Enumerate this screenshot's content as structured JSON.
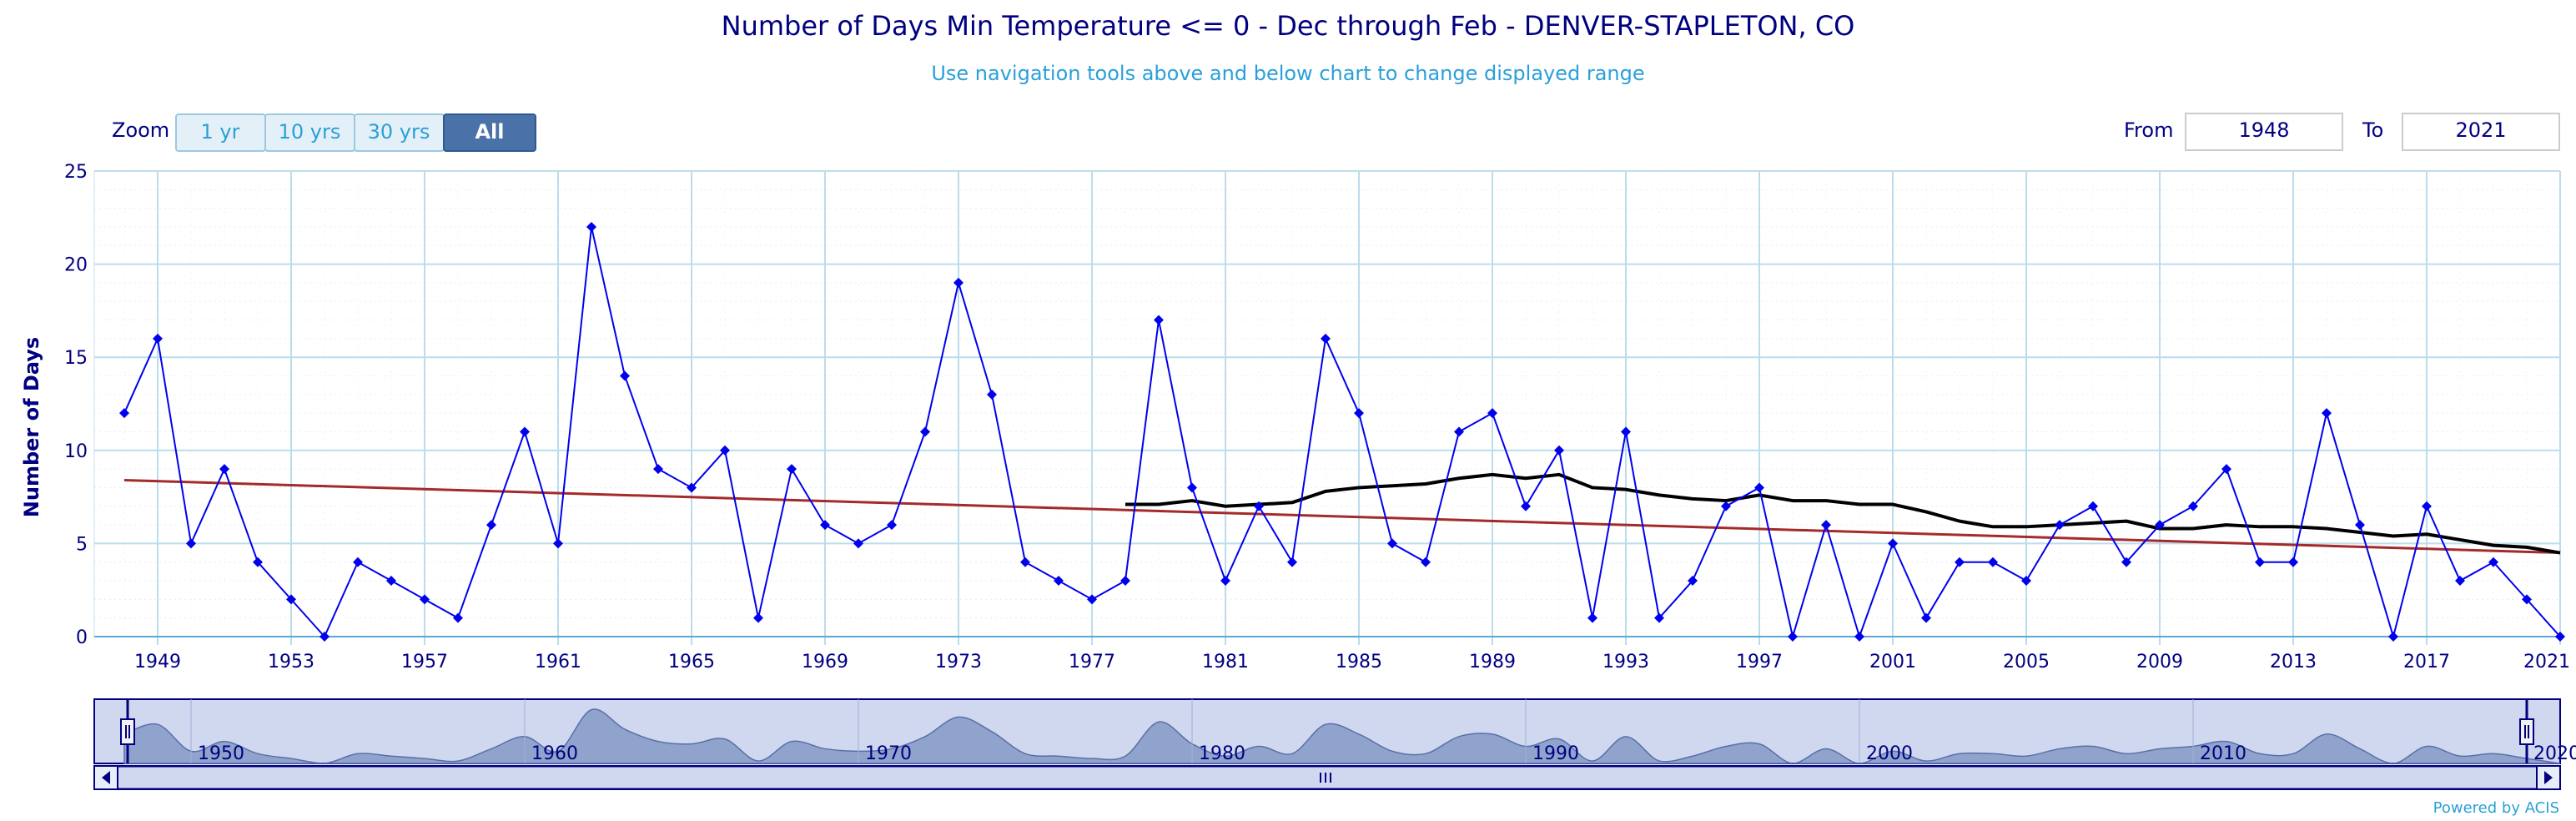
{
  "title": "Number of Days Min Temperature <= 0 - Dec through Feb - DENVER-STAPLETON, CO",
  "subtitle": "Use navigation tools above and below chart to change displayed range",
  "zoom": {
    "label": "Zoom",
    "buttons": [
      "1 yr",
      "10 yrs",
      "30 yrs",
      "All"
    ],
    "active": "All"
  },
  "range": {
    "from_label": "From",
    "from_value": "1948",
    "to_label": "To",
    "to_value": "2021"
  },
  "credit": "Powered by ACIS",
  "colors": {
    "series": "#0000ee",
    "trend": "#a52a2a",
    "mean": "#000000",
    "title": "#000080",
    "subtitle": "#2aa0d8",
    "grid": "#bcdcec",
    "navigator_fill": "#cfd8ee",
    "navigator_area": "#8fa3cc",
    "zoom_active": "#4a72a8",
    "zoom_inactive": "#e4f0f8"
  },
  "chart_data": {
    "type": "line",
    "xlabel": "",
    "ylabel": "Number of Days",
    "ylim": [
      0,
      25
    ],
    "xlim": [
      1947.1,
      2021
    ],
    "y_ticks": [
      0,
      5,
      10,
      15,
      20,
      25
    ],
    "x_ticks": [
      "1949",
      "1953",
      "1957",
      "1961",
      "1965",
      "1969",
      "1973",
      "1977",
      "1981",
      "1985",
      "1989",
      "1993",
      "1997",
      "2001",
      "2005",
      "2009",
      "2013",
      "2017",
      "2021"
    ],
    "grid": true,
    "series": [
      {
        "x": [
          1948,
          1949,
          1950,
          1951,
          1952,
          1953,
          1954,
          1955,
          1956,
          1957,
          1958,
          1959,
          1960,
          1961,
          1962,
          1963,
          1964,
          1965,
          1966,
          1967,
          1968,
          1969,
          1970,
          1971,
          1972,
          1973,
          1974,
          1975,
          1976,
          1977,
          1978,
          1979,
          1980,
          1981,
          1982,
          1983,
          1984,
          1985,
          1986,
          1987,
          1988,
          1989,
          1990,
          1991,
          1992,
          1993,
          1994,
          1995,
          1996,
          1997,
          1998,
          1999,
          2000,
          2001,
          2002,
          2003,
          2004,
          2005,
          2006,
          2007,
          2008,
          2009,
          2010,
          2011,
          2012,
          2013,
          2014,
          2015,
          2016,
          2017,
          2018,
          2019,
          2020,
          2021
        ],
        "values": [
          12,
          16,
          5,
          9,
          4,
          2,
          0,
          4,
          3,
          2,
          1,
          6,
          11,
          5,
          22,
          14,
          9,
          8,
          10,
          1,
          9,
          6,
          5,
          6,
          11,
          19,
          13,
          4,
          3,
          2,
          3,
          17,
          8,
          3,
          7,
          4,
          16,
          12,
          5,
          4,
          11,
          12,
          7,
          10,
          1,
          11,
          1,
          3,
          7,
          8,
          0,
          6,
          0,
          5,
          1,
          4,
          4,
          3,
          6,
          7,
          4,
          6,
          7,
          9,
          4,
          4,
          12,
          6,
          0,
          7,
          3,
          4,
          2,
          0
        ]
      },
      {
        "x": [
          1948,
          2021
        ],
        "values": [
          8.4,
          4.5
        ]
      },
      {
        "x": [
          1978,
          1979,
          1980,
          1981,
          1982,
          1983,
          1984,
          1985,
          1986,
          1987,
          1988,
          1989,
          1990,
          1991,
          1992,
          1993,
          1994,
          1995,
          1996,
          1997,
          1998,
          1999,
          2000,
          2001,
          2002,
          2003,
          2004,
          2005,
          2006,
          2007,
          2008,
          2009,
          2010,
          2011,
          2012,
          2013,
          2014,
          2015,
          2016,
          2017,
          2018,
          2019,
          2020,
          2021
        ],
        "values": [
          7.1,
          7.1,
          7.3,
          7.0,
          7.1,
          7.2,
          7.8,
          8.0,
          8.1,
          8.2,
          8.5,
          8.7,
          8.5,
          8.7,
          8.0,
          7.9,
          7.6,
          7.4,
          7.3,
          7.6,
          7.3,
          7.3,
          7.1,
          7.1,
          6.7,
          6.2,
          5.9,
          5.9,
          6.0,
          6.1,
          6.2,
          5.8,
          5.8,
          6.0,
          5.9,
          5.9,
          5.8,
          5.6,
          5.4,
          5.5,
          5.2,
          4.9,
          4.8,
          4.5
        ]
      }
    ],
    "navigator_ticks": [
      "1950",
      "1960",
      "1970",
      "1980",
      "1990",
      "2000",
      "2010",
      "2020"
    ]
  }
}
